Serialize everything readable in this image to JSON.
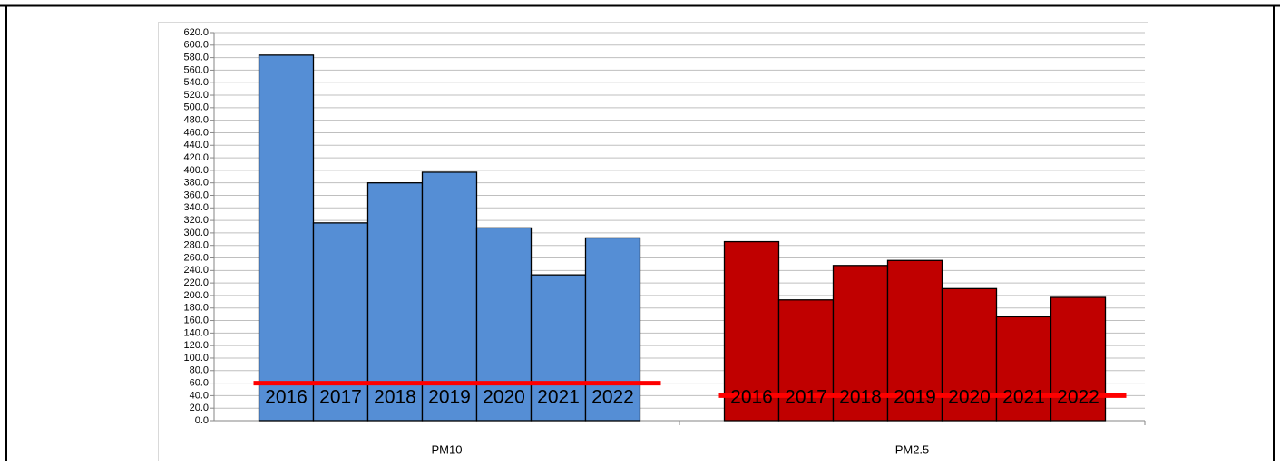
{
  "chart_data": {
    "type": "bar",
    "categories": [
      "PM10",
      "PM2.5"
    ],
    "category_colors": [
      "#558ed5",
      "#c00000"
    ],
    "series": [
      {
        "name": "2016",
        "values": [
          584,
          286
        ]
      },
      {
        "name": "2017",
        "values": [
          316,
          193
        ]
      },
      {
        "name": "2018",
        "values": [
          380,
          248
        ]
      },
      {
        "name": "2019",
        "values": [
          397,
          256
        ]
      },
      {
        "name": "2020",
        "values": [
          308,
          211
        ]
      },
      {
        "name": "2021",
        "values": [
          233,
          166
        ]
      },
      {
        "name": "2022",
        "values": [
          292,
          197
        ]
      }
    ],
    "thresholds": [
      60,
      40
    ],
    "threshold_color": "#ff0000",
    "ylim": [
      0,
      620
    ],
    "yticks": [
      {
        "value": 0,
        "label": "0.0"
      },
      {
        "value": 20,
        "label": "20.0"
      },
      {
        "value": 40,
        "label": "40.0"
      },
      {
        "value": 60,
        "label": "60.0"
      },
      {
        "value": 80,
        "label": "80.0"
      },
      {
        "value": 100,
        "label": "100.0"
      },
      {
        "value": 120,
        "label": "120.0"
      },
      {
        "value": 140,
        "label": "140.0"
      },
      {
        "value": 160,
        "label": "160.0"
      },
      {
        "value": 180,
        "label": "180.0"
      },
      {
        "value": 200,
        "label": "200.0"
      },
      {
        "value": 220,
        "label": "220.0"
      },
      {
        "value": 240,
        "label": "240.0"
      },
      {
        "value": 260,
        "label": "260.0"
      },
      {
        "value": 280,
        "label": "280.0"
      },
      {
        "value": 300,
        "label": "300.0"
      },
      {
        "value": 320,
        "label": "320.0"
      },
      {
        "value": 340,
        "label": "340.0"
      },
      {
        "value": 360,
        "label": "360.0"
      },
      {
        "value": 380,
        "label": "380.0"
      },
      {
        "value": 400,
        "label": "400.0"
      },
      {
        "value": 420,
        "label": "420.0"
      },
      {
        "value": 440,
        "label": "440.0"
      },
      {
        "value": 460,
        "label": "460.0"
      },
      {
        "value": 480,
        "label": "480.0"
      },
      {
        "value": 500,
        "label": "500.0"
      },
      {
        "value": 520,
        "label": "520.0"
      },
      {
        "value": 540,
        "label": "540.0"
      },
      {
        "value": 560,
        "label": "560.0"
      },
      {
        "value": 580,
        "label": "580.0"
      },
      {
        "value": 600,
        "label": "600.0"
      },
      {
        "value": 620,
        "label": "620.0"
      }
    ],
    "grid": true
  }
}
